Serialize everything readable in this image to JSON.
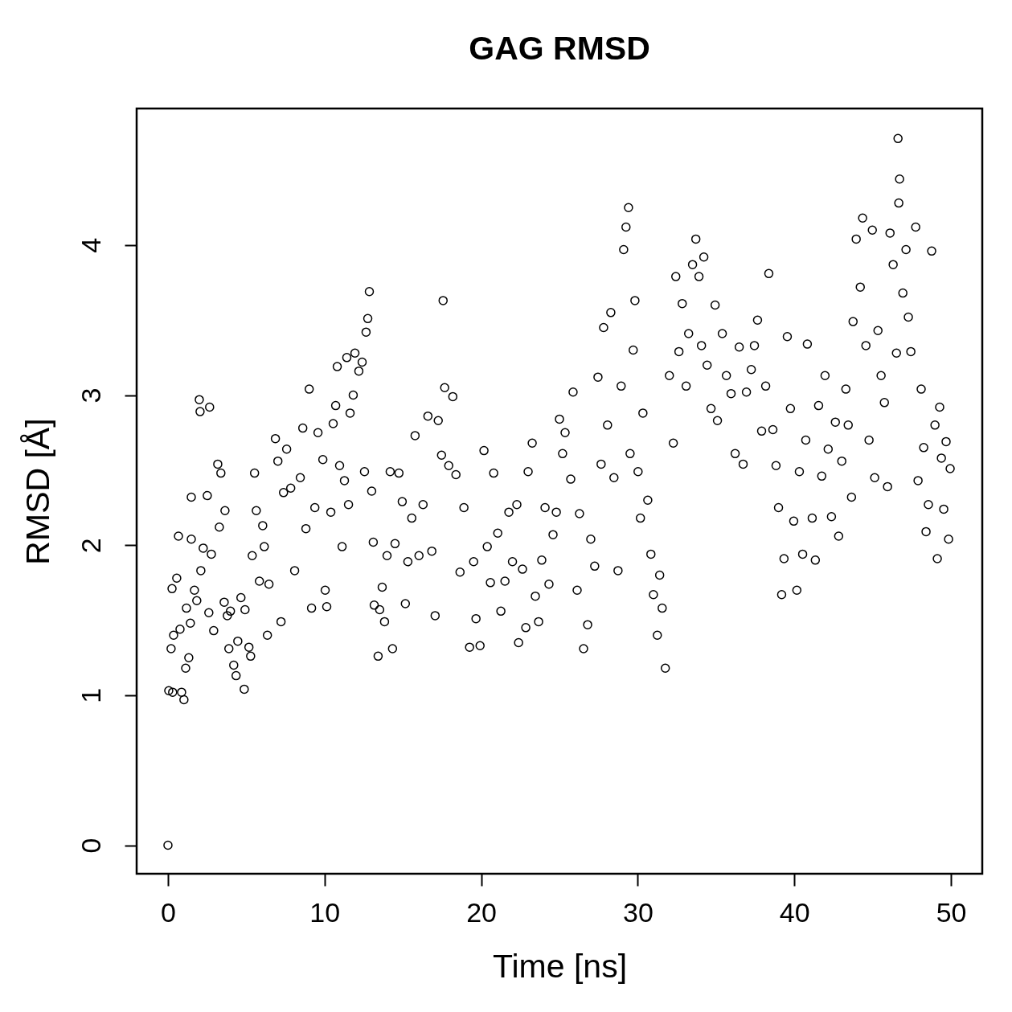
{
  "chart_data": {
    "type": "scatter",
    "title": "GAG RMSD",
    "xlabel": "Time [ns]",
    "ylabel": "RMSD [Å]",
    "color": "#000000",
    "marker": "circle",
    "xlim": [
      -2,
      52
    ],
    "ylim": [
      -0.19,
      4.91
    ],
    "xticks": [
      0,
      10,
      20,
      30,
      40,
      50
    ],
    "yticks": [
      0,
      1,
      2,
      3,
      4
    ],
    "x": [
      0,
      0.05,
      0.3,
      0.2,
      0.36,
      0.26,
      0.56,
      0.67,
      0.77,
      0.87,
      1.02,
      1.13,
      1.18,
      1.33,
      1.43,
      1.49,
      1.49,
      1.69,
      1.84,
      2.0,
      2.05,
      2.1,
      2.25,
      2.51,
      2.66,
      2.61,
      2.77,
      2.92,
      3.18,
      3.28,
      3.38,
      3.59,
      3.64,
      3.79,
      3.89,
      3.99,
      4.2,
      4.35,
      4.46,
      4.66,
      4.87,
      4.92,
      5.17,
      5.28,
      5.38,
      5.53,
      5.64,
      5.84,
      6.05,
      6.15,
      6.35,
      6.45,
      6.86,
      7.02,
      7.22,
      7.38,
      7.58,
      7.84,
      8.09,
      8.45,
      8.61,
      8.81,
      9.02,
      9.17,
      9.38,
      9.58,
      9.89,
      10.04,
      10.14,
      10.4,
      10.55,
      10.71,
      10.81,
      10.96,
      11.12,
      11.27,
      11.42,
      11.53,
      11.63,
      11.83,
      11.94,
      12.19,
      12.4,
      12.55,
      12.65,
      12.76,
      12.86,
      13.01,
      13.11,
      13.17,
      13.42,
      13.52,
      13.68,
      13.83,
      13.99,
      14.19,
      14.34,
      14.5,
      14.75,
      14.96,
      15.16,
      15.32,
      15.57,
      15.78,
      16.03,
      16.29,
      16.6,
      16.85,
      17.06,
      17.26,
      17.47,
      17.57,
      17.67,
      17.93,
      18.19,
      18.39,
      18.65,
      18.9,
      19.26,
      19.52,
      19.67,
      19.93,
      20.18,
      20.39,
      20.59,
      20.8,
      21.06,
      21.26,
      21.52,
      21.77,
      22.0,
      22.28,
      22.39,
      22.64,
      22.85,
      23.0,
      23.26,
      23.46,
      23.67,
      23.87,
      24.08,
      24.33,
      24.59,
      24.8,
      25.0,
      25.2,
      25.36,
      25.72,
      25.87,
      26.13,
      26.28,
      26.54,
      26.8,
      27.0,
      27.25,
      27.46,
      27.66,
      27.82,
      28.07,
      28.28,
      28.48,
      28.74,
      28.94,
      29.1,
      29.25,
      29.41,
      29.51,
      29.71,
      29.82,
      30.02,
      30.17,
      30.33,
      30.64,
      30.84,
      31.0,
      31.25,
      31.4,
      31.56,
      31.76,
      32.02,
      32.27,
      32.43,
      32.63,
      32.84,
      33.09,
      33.25,
      33.5,
      33.71,
      33.91,
      34.07,
      34.22,
      34.43,
      34.68,
      34.94,
      35.09,
      35.4,
      35.66,
      35.96,
      36.22,
      36.48,
      36.73,
      36.94,
      37.25,
      37.45,
      37.65,
      37.91,
      38.17,
      38.37,
      38.63,
      38.83,
      38.99,
      39.19,
      39.34,
      39.55,
      39.75,
      39.96,
      40.16,
      40.32,
      40.53,
      40.73,
      40.83,
      41.14,
      41.34,
      41.55,
      41.75,
      41.96,
      42.16,
      42.37,
      42.62,
      42.83,
      43.03,
      43.29,
      43.44,
      43.65,
      43.75,
      43.95,
      44.21,
      44.36,
      44.57,
      44.77,
      44.98,
      45.13,
      45.34,
      45.54,
      45.75,
      45.95,
      46.11,
      46.31,
      46.52,
      46.62,
      46.67,
      46.72,
      46.93,
      47.13,
      47.28,
      47.44,
      47.75,
      47.9,
      48.1,
      48.26,
      48.41,
      48.56,
      48.77,
      48.98,
      49.13,
      49.28,
      49.39,
      49.54,
      49.69,
      49.85,
      49.95
    ],
    "values": [
      0,
      1.03,
      1.02,
      1.31,
      1.4,
      1.71,
      1.78,
      2.06,
      1.44,
      1.02,
      0.97,
      1.18,
      1.58,
      1.25,
      1.48,
      2.04,
      2.32,
      1.7,
      1.63,
      2.97,
      2.89,
      1.83,
      1.98,
      2.33,
      2.92,
      1.55,
      1.94,
      1.43,
      2.54,
      2.12,
      2.48,
      1.62,
      2.23,
      1.53,
      1.31,
      1.56,
      1.2,
      1.13,
      1.36,
      1.65,
      1.04,
      1.57,
      1.32,
      1.26,
      1.93,
      2.48,
      2.23,
      1.76,
      2.13,
      1.99,
      1.4,
      1.74,
      2.71,
      2.56,
      1.49,
      2.35,
      2.64,
      2.38,
      1.83,
      2.45,
      2.78,
      2.11,
      3.04,
      1.58,
      2.25,
      2.75,
      2.57,
      1.7,
      1.59,
      2.22,
      2.81,
      2.93,
      3.19,
      2.53,
      1.99,
      2.43,
      3.25,
      2.27,
      2.88,
      3.0,
      3.28,
      3.16,
      3.22,
      2.49,
      3.42,
      3.51,
      3.69,
      2.36,
      2.02,
      1.6,
      1.26,
      1.57,
      1.72,
      1.49,
      1.93,
      2.49,
      1.31,
      2.01,
      2.48,
      2.29,
      1.61,
      1.89,
      2.18,
      2.73,
      1.93,
      2.27,
      2.86,
      1.96,
      1.53,
      2.83,
      2.6,
      3.63,
      3.05,
      2.53,
      2.99,
      2.47,
      1.82,
      2.25,
      1.32,
      1.89,
      1.51,
      1.33,
      2.63,
      1.99,
      1.75,
      2.48,
      2.08,
      1.56,
      1.76,
      2.22,
      1.89,
      2.27,
      1.35,
      1.84,
      1.45,
      2.49,
      2.68,
      1.66,
      1.49,
      1.9,
      2.25,
      1.74,
      2.07,
      2.22,
      2.84,
      2.61,
      2.75,
      2.44,
      3.02,
      1.7,
      2.21,
      1.31,
      1.47,
      2.04,
      1.86,
      3.12,
      2.54,
      3.45,
      2.8,
      3.55,
      2.45,
      1.83,
      3.06,
      3.97,
      4.12,
      4.25,
      2.61,
      3.3,
      3.63,
      2.49,
      2.18,
      2.88,
      2.3,
      1.94,
      1.67,
      1.4,
      1.8,
      1.58,
      1.18,
      3.13,
      2.68,
      3.79,
      3.29,
      3.61,
      3.06,
      3.41,
      3.87,
      4.04,
      3.79,
      3.33,
      3.92,
      3.2,
      2.91,
      3.6,
      2.83,
      3.41,
      3.13,
      3.01,
      2.61,
      3.32,
      2.54,
      3.02,
      3.17,
      3.33,
      3.5,
      2.76,
      3.06,
      3.81,
      2.77,
      2.53,
      2.25,
      1.67,
      1.91,
      3.39,
      2.91,
      2.16,
      1.7,
      2.49,
      1.94,
      2.7,
      3.34,
      2.18,
      1.9,
      2.93,
      2.46,
      3.13,
      2.64,
      2.19,
      2.82,
      2.06,
      2.56,
      3.04,
      2.8,
      2.32,
      3.49,
      4.04,
      3.72,
      4.18,
      3.33,
      2.7,
      4.1,
      2.45,
      3.43,
      3.13,
      2.95,
      2.39,
      4.08,
      3.87,
      3.28,
      4.71,
      4.28,
      4.44,
      3.68,
      3.97,
      3.52,
      3.29,
      4.12,
      2.43,
      3.04,
      2.65,
      2.09,
      2.27,
      3.96,
      2.8,
      1.91,
      2.92,
      2.58,
      2.24,
      2.69,
      2.04,
      2.51
    ]
  }
}
